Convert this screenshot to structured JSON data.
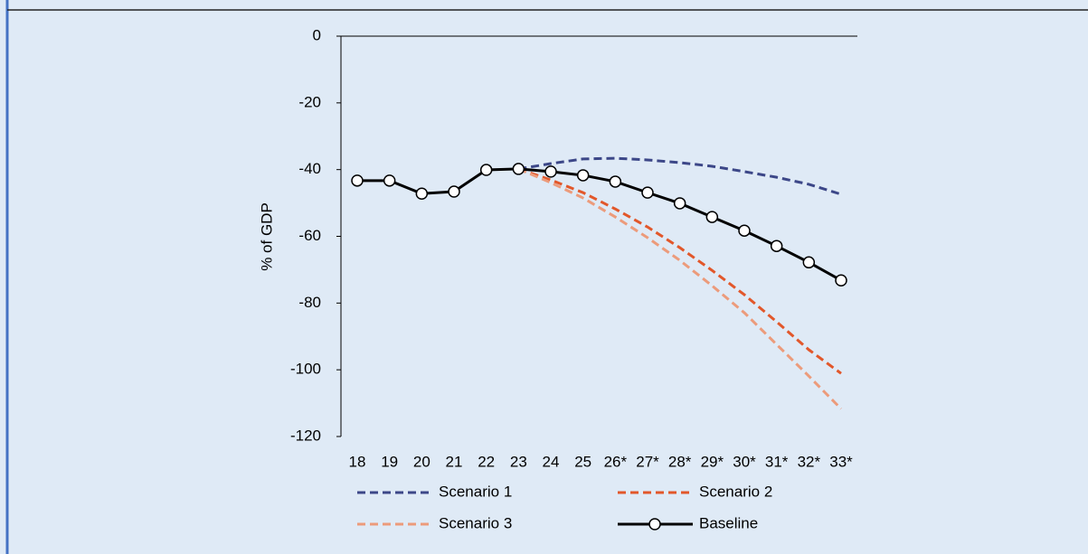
{
  "chart_data": {
    "type": "line",
    "y_label": "% of GDP",
    "categories": [
      "18",
      "19",
      "20",
      "21",
      "22",
      "23",
      "24",
      "25",
      "26*",
      "27*",
      "28*",
      "29*",
      "30*",
      "31*",
      "32*",
      "33*"
    ],
    "ylim": [
      -120,
      0
    ],
    "yticks": [
      0,
      -20,
      -40,
      -60,
      -80,
      -100,
      -120
    ],
    "series": [
      {
        "name": "Scenario 1",
        "color": "#3c4788",
        "dashed": true,
        "values": [
          null,
          null,
          null,
          null,
          null,
          -39.8,
          -38.2,
          -36.8,
          -36.6,
          -37.1,
          -37.9,
          -39.0,
          -40.6,
          -42.3,
          -44.4,
          -47.4
        ]
      },
      {
        "name": "Scenario 2",
        "color": "#e2572a",
        "dashed": true,
        "values": [
          null,
          null,
          null,
          null,
          null,
          -39.8,
          -43.1,
          -46.9,
          -51.8,
          -57.2,
          -63.4,
          -70.2,
          -77.5,
          -85.6,
          -94.0,
          -101.1
        ]
      },
      {
        "name": "Scenario 3",
        "color": "#ec9b7b",
        "dashed": true,
        "values": [
          null,
          null,
          null,
          null,
          null,
          -39.8,
          -43.9,
          -48.5,
          -54.2,
          -60.4,
          -67.2,
          -74.8,
          -82.9,
          -92.4,
          -101.9,
          -111.7
        ]
      },
      {
        "name": "Baseline",
        "color": "#000000",
        "dashed": false,
        "markers": true,
        "values": [
          -43.3,
          -43.3,
          -47.2,
          -46.6,
          -40.1,
          -39.8,
          -40.6,
          -41.7,
          -43.6,
          -46.9,
          -50.1,
          -54.2,
          -58.3,
          -62.9,
          -67.8,
          -73.2
        ]
      }
    ]
  }
}
